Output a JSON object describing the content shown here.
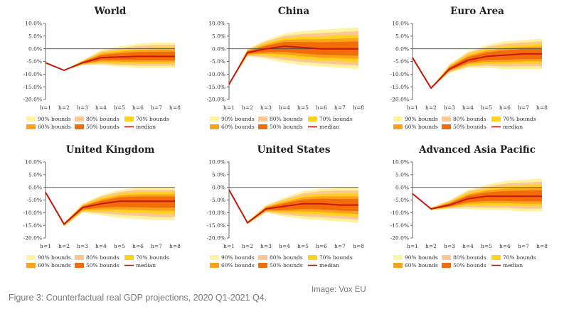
{
  "caption": "Figure 3: Counterfactual real GDP projections, 2020 Q1-2021 Q4.",
  "credit": "Image: Vox EU",
  "colors": {
    "b90": "#fff2a0",
    "b80": "#fcc792",
    "b70": "#ffd21f",
    "b60": "#fca21a",
    "b50": "#f36c0a",
    "median": "#c4170a"
  },
  "legend": [
    "90% bounds",
    "80% bounds",
    "70% bounds",
    "60% bounds",
    "50% bounds",
    "median"
  ],
  "chart_data": [
    {
      "type": "area",
      "title": "World",
      "categories": [
        "h=1",
        "h=2",
        "h=3",
        "h=4",
        "h=5",
        "h=6",
        "h=7",
        "h=8"
      ],
      "yticks": [
        "10.0%",
        "5.0%",
        "0.0%",
        "-5.0%",
        "-10.0%",
        "-15.0%",
        "-20.0%"
      ],
      "ylim": [
        -20,
        10
      ],
      "median": [
        -5.5,
        -8.5,
        -5.5,
        -3.5,
        -3.2,
        -3.0,
        -3.0,
        -3.0
      ],
      "band90": [
        [
          -5.5,
          -5.5
        ],
        [
          -8.5,
          -8.5
        ],
        [
          -6.5,
          -4.5
        ],
        [
          -6.5,
          -0.5
        ],
        [
          -7.0,
          1.0
        ],
        [
          -7.5,
          2.0
        ],
        [
          -7.5,
          2.5
        ],
        [
          -7.5,
          2.5
        ]
      ]
    },
    {
      "type": "area",
      "title": "China",
      "categories": [
        "h=1",
        "h=2",
        "h=3",
        "h=4",
        "h=5",
        "h=6",
        "h=7",
        "h=8"
      ],
      "yticks": [
        "10.0%",
        "5.0%",
        "0.0%",
        "-5.0%",
        "-10.0%",
        "-15.0%",
        "-20.0%"
      ],
      "ylim": [
        -20,
        10
      ],
      "median": [
        -14.0,
        -1.5,
        0.0,
        1.0,
        0.5,
        0.0,
        0.0,
        0.0
      ],
      "band90": [
        [
          -14.0,
          -14.0
        ],
        [
          -3.0,
          0.0
        ],
        [
          -4.0,
          3.5
        ],
        [
          -5.5,
          6.0
        ],
        [
          -6.5,
          7.0
        ],
        [
          -7.0,
          7.5
        ],
        [
          -7.5,
          8.0
        ],
        [
          -8.0,
          8.5
        ]
      ]
    },
    {
      "type": "area",
      "title": "Euro Area",
      "categories": [
        "h=1",
        "h=2",
        "h=3",
        "h=4",
        "h=5",
        "h=6",
        "h=7",
        "h=8"
      ],
      "yticks": [
        "10.0%",
        "5.0%",
        "0.0%",
        "-5.0%",
        "-10.0%",
        "-15.0%",
        "-20.0%"
      ],
      "ylim": [
        -20,
        10
      ],
      "median": [
        -3.5,
        -15.5,
        -8.0,
        -4.5,
        -3.0,
        -2.5,
        -2.0,
        -2.0
      ],
      "band90": [
        [
          -3.5,
          -3.5
        ],
        [
          -15.5,
          -15.5
        ],
        [
          -9.5,
          -6.0
        ],
        [
          -7.5,
          -1.0
        ],
        [
          -7.5,
          1.5
        ],
        [
          -8.0,
          3.0
        ],
        [
          -8.0,
          3.5
        ],
        [
          -8.0,
          4.0
        ]
      ]
    },
    {
      "type": "area",
      "title": "United Kingdom",
      "categories": [
        "h=1",
        "h=2",
        "h=3",
        "h=4",
        "h=5",
        "h=6",
        "h=7",
        "h=8"
      ],
      "yticks": [
        "10.0%",
        "5.0%",
        "0.0%",
        "-5.0%",
        "-10.0%",
        "-15.0%",
        "-20.0%"
      ],
      "ylim": [
        -20,
        10
      ],
      "median": [
        -2.0,
        -14.5,
        -8.0,
        -6.5,
        -5.5,
        -5.5,
        -5.5,
        -5.5
      ],
      "band90": [
        [
          -2.0,
          -2.0
        ],
        [
          -15.5,
          -14.0
        ],
        [
          -10.0,
          -6.5
        ],
        [
          -11.0,
          -3.0
        ],
        [
          -12.0,
          -1.0
        ],
        [
          -12.5,
          0.0
        ],
        [
          -13.0,
          0.0
        ],
        [
          -13.0,
          0.0
        ]
      ]
    },
    {
      "type": "area",
      "title": "United States",
      "categories": [
        "h=1",
        "h=2",
        "h=3",
        "h=4",
        "h=5",
        "h=6",
        "h=7",
        "h=8"
      ],
      "yticks": [
        "10.0%",
        "5.0%",
        "0.0%",
        "-5.0%",
        "-10.0%",
        "-15.0%",
        "-20.0%"
      ],
      "ylim": [
        -20,
        10
      ],
      "median": [
        -1.0,
        -14.0,
        -8.5,
        -7.5,
        -6.5,
        -6.5,
        -7.0,
        -7.0
      ],
      "band90": [
        [
          -1.0,
          -1.0
        ],
        [
          -14.5,
          -13.5
        ],
        [
          -10.0,
          -7.0
        ],
        [
          -11.5,
          -4.0
        ],
        [
          -12.5,
          -1.5
        ],
        [
          -13.0,
          -0.5
        ],
        [
          -13.5,
          0.0
        ],
        [
          -14.0,
          0.0
        ]
      ]
    },
    {
      "type": "area",
      "title": "Advanced Asia Pacific",
      "categories": [
        "h=1",
        "h=2",
        "h=3",
        "h=4",
        "h=5",
        "h=6",
        "h=7",
        "h=8"
      ],
      "yticks": [
        "10.0%",
        "5.0%",
        "0.0%",
        "-5.0%",
        "-10.0%",
        "-15.0%",
        "-20.0%"
      ],
      "ylim": [
        -20,
        10
      ],
      "median": [
        -2.5,
        -8.5,
        -7.0,
        -4.5,
        -3.5,
        -3.5,
        -3.5,
        -3.5
      ],
      "band90": [
        [
          -2.5,
          -2.5
        ],
        [
          -9.0,
          -8.0
        ],
        [
          -8.5,
          -5.0
        ],
        [
          -8.5,
          -1.0
        ],
        [
          -9.0,
          1.0
        ],
        [
          -9.0,
          2.5
        ],
        [
          -9.5,
          3.0
        ],
        [
          -9.5,
          3.5
        ]
      ]
    }
  ]
}
